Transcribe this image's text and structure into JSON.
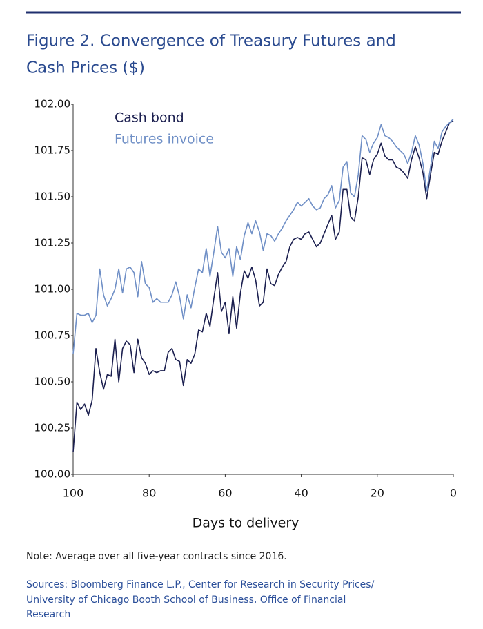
{
  "chart_data": {
    "type": "line",
    "title": [
      "Figure 2. Convergence of Treasury Futures and",
      "Cash Prices ($)"
    ],
    "x_label": "Days to delivery",
    "x": [
      100,
      99,
      98,
      97,
      96,
      95,
      94,
      93,
      92,
      91,
      90,
      89,
      88,
      87,
      86,
      85,
      84,
      83,
      82,
      81,
      80,
      79,
      78,
      77,
      76,
      75,
      74,
      73,
      72,
      71,
      70,
      69,
      68,
      67,
      66,
      65,
      64,
      63,
      62,
      61,
      60,
      59,
      58,
      57,
      56,
      55,
      54,
      53,
      52,
      51,
      50,
      49,
      48,
      47,
      46,
      45,
      44,
      43,
      42,
      41,
      40,
      39,
      38,
      37,
      36,
      35,
      34,
      33,
      32,
      31,
      30,
      29,
      28,
      27,
      26,
      25,
      24,
      23,
      22,
      21,
      20,
      19,
      18,
      17,
      16,
      15,
      14,
      13,
      12,
      11,
      10,
      9,
      8,
      7,
      6,
      5,
      4,
      3,
      2,
      1,
      0
    ],
    "series": [
      {
        "name": "Cash bond",
        "color": "#1b1f4f",
        "values": [
          100.12,
          100.39,
          100.35,
          100.38,
          100.32,
          100.4,
          100.68,
          100.55,
          100.46,
          100.54,
          100.53,
          100.73,
          100.5,
          100.68,
          100.72,
          100.7,
          100.55,
          100.73,
          100.63,
          100.6,
          100.54,
          100.56,
          100.55,
          100.56,
          100.56,
          100.66,
          100.68,
          100.62,
          100.61,
          100.48,
          100.62,
          100.6,
          100.65,
          100.78,
          100.77,
          100.87,
          100.8,
          100.95,
          101.09,
          100.88,
          100.93,
          100.76,
          100.96,
          100.79,
          100.98,
          101.1,
          101.06,
          101.12,
          101.05,
          100.91,
          100.93,
          101.11,
          101.03,
          101.02,
          101.08,
          101.12,
          101.15,
          101.23,
          101.27,
          101.28,
          101.27,
          101.3,
          101.31,
          101.27,
          101.23,
          101.25,
          101.3,
          101.35,
          101.4,
          101.27,
          101.31,
          101.54,
          101.54,
          101.39,
          101.37,
          101.5,
          101.71,
          101.7,
          101.62,
          101.7,
          101.73,
          101.79,
          101.72,
          101.7,
          101.7,
          101.66,
          101.65,
          101.63,
          101.6,
          101.7,
          101.77,
          101.71,
          101.63,
          101.49,
          101.62,
          101.74,
          101.73,
          101.8,
          101.85,
          101.9,
          101.91
        ]
      },
      {
        "name": "Futures invoice",
        "color": "#6f8fc6",
        "values": [
          100.65,
          100.87,
          100.86,
          100.86,
          100.87,
          100.82,
          100.86,
          101.11,
          100.97,
          100.91,
          100.95,
          101.0,
          101.11,
          100.98,
          101.11,
          101.12,
          101.09,
          100.96,
          101.15,
          101.03,
          101.01,
          100.93,
          100.95,
          100.93,
          100.93,
          100.93,
          100.97,
          101.04,
          100.96,
          100.84,
          100.97,
          100.9,
          101.01,
          101.11,
          101.09,
          101.22,
          101.07,
          101.2,
          101.34,
          101.2,
          101.17,
          101.22,
          101.07,
          101.23,
          101.16,
          101.29,
          101.36,
          101.3,
          101.37,
          101.31,
          101.21,
          101.3,
          101.29,
          101.26,
          101.3,
          101.33,
          101.37,
          101.4,
          101.43,
          101.47,
          101.45,
          101.47,
          101.49,
          101.45,
          101.43,
          101.44,
          101.49,
          101.51,
          101.56,
          101.44,
          101.48,
          101.66,
          101.69,
          101.52,
          101.5,
          101.62,
          101.83,
          101.81,
          101.74,
          101.79,
          101.82,
          101.89,
          101.83,
          101.82,
          101.8,
          101.77,
          101.75,
          101.73,
          101.68,
          101.74,
          101.83,
          101.78,
          101.68,
          101.53,
          101.66,
          101.8,
          101.76,
          101.85,
          101.88,
          101.9,
          101.92
        ]
      }
    ],
    "xlim": [
      100,
      0
    ],
    "xticks": [
      100,
      80,
      60,
      40,
      20,
      0
    ],
    "ylim": [
      100,
      102
    ],
    "yticks": [
      {
        "value": 100,
        "label": "100.00"
      },
      {
        "value": 100.25,
        "label": "100.25"
      },
      {
        "value": 100.5,
        "label": "100.50"
      },
      {
        "value": 100.75,
        "label": "100.75"
      },
      {
        "value": 101,
        "label": "101.00"
      },
      {
        "value": 101.25,
        "label": "101.25"
      },
      {
        "value": 101.5,
        "label": "101.50"
      },
      {
        "value": 101.75,
        "label": "101.75"
      },
      {
        "value": 102,
        "label": "102.00"
      }
    ],
    "grid": false,
    "legend": "top-left"
  },
  "note": "Note: Average over all five-year contracts since 2016.",
  "sources": [
    "Sources: Bloomberg Finance L.P., Center for Research in Security Prices/",
    "University of Chicago Booth School of Business, Office of Financial",
    "Research"
  ]
}
